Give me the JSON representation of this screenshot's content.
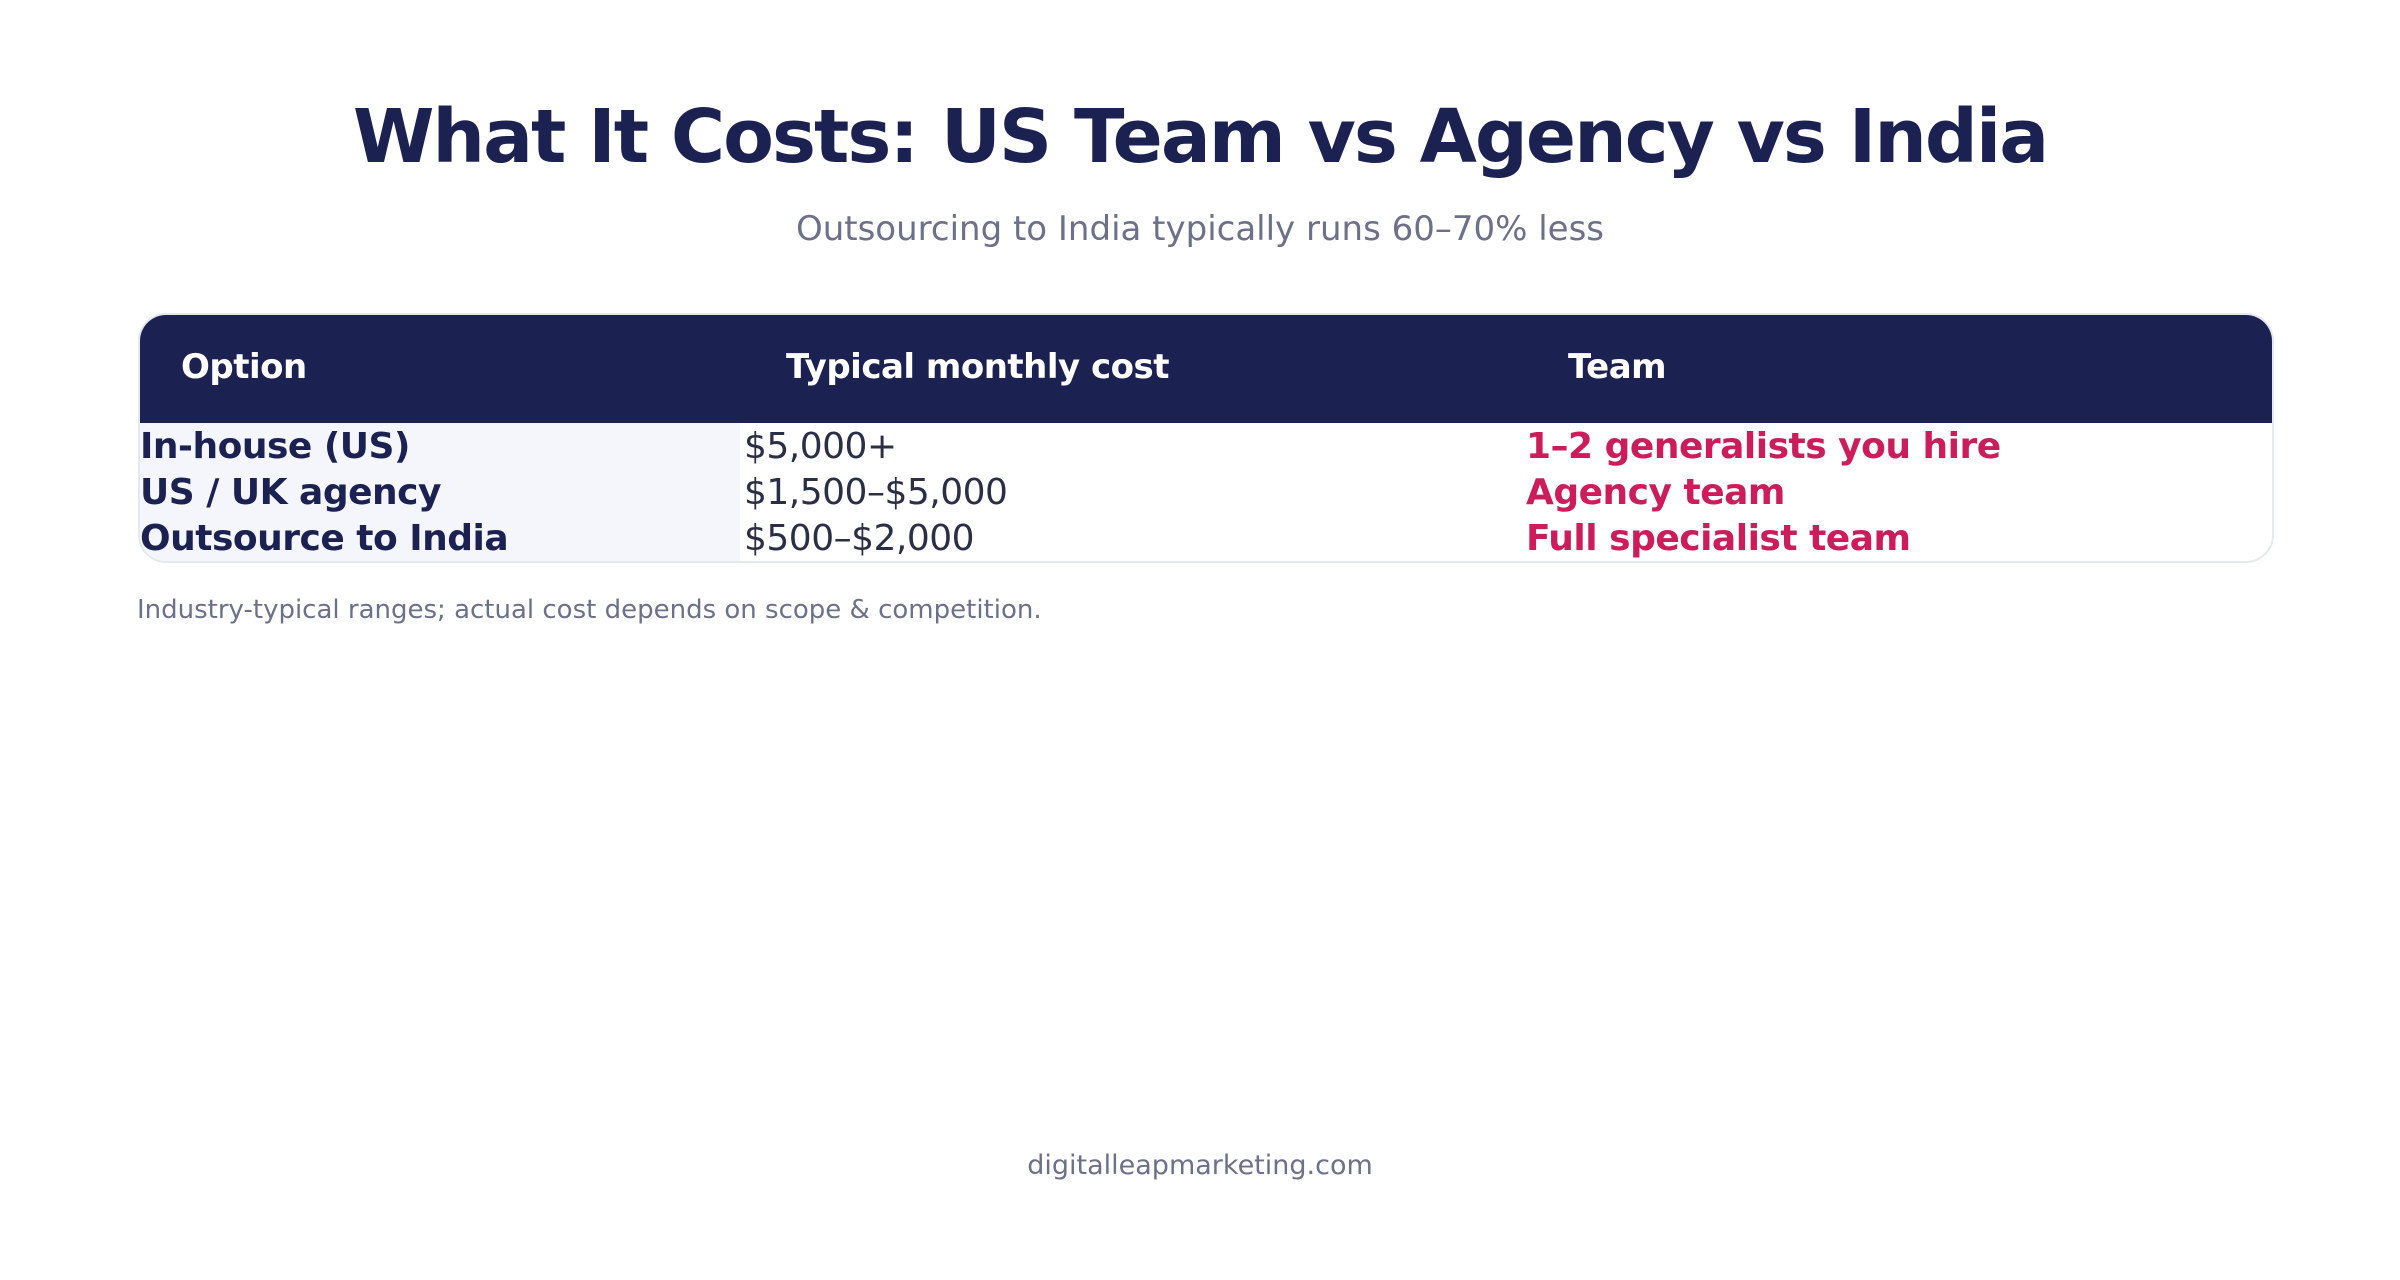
{
  "page": {
    "title": "What It Costs: US Team vs Agency vs India",
    "subtitle": "Outsourcing to India typically runs 60–70% less",
    "note": "Industry-typical ranges; actual cost depends on scope & competition.",
    "footer": "digitalleapmarketing.com"
  },
  "table": {
    "headers": {
      "option": "Option",
      "cost": "Typical monthly cost",
      "team": "Team"
    },
    "rows": [
      {
        "option": "In-house (US)",
        "cost": "$5,000+",
        "team": "1–2 generalists you hire"
      },
      {
        "option": "US / UK agency",
        "cost": "$1,500–$5,000",
        "team": "Agency team"
      },
      {
        "option": "Outsource to India",
        "cost": "$500–$2,000",
        "team": "Full specialist team"
      }
    ]
  },
  "colors": {
    "navy": "#1b2252",
    "accent": "#cc1d5a",
    "muted": "#6c7089",
    "row_tint": "#f4f6fb"
  }
}
